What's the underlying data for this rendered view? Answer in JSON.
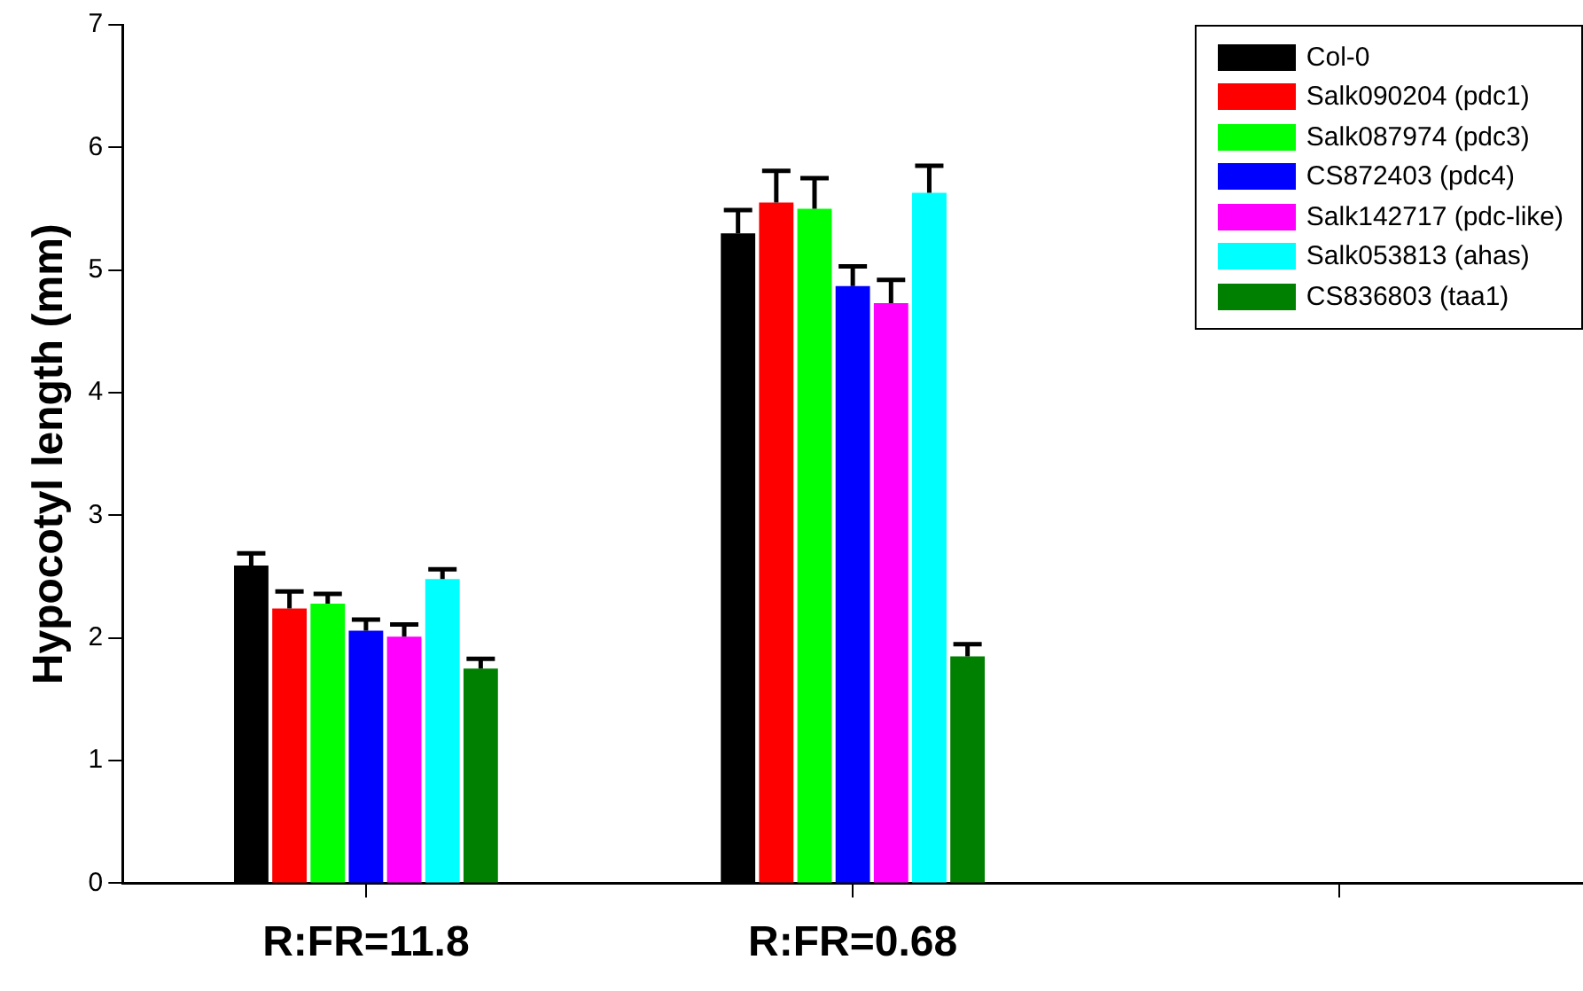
{
  "chart_data": {
    "type": "bar",
    "ylabel": "Hypocotyl length (mm)",
    "categories": [
      "R:FR=11.8",
      "R:FR=0.68",
      null
    ],
    "series": [
      {
        "name": "Col-0",
        "color": "#000000",
        "values": [
          2.59,
          5.3,
          null
        ],
        "errors": [
          [
            2.59,
            2.69
          ],
          [
            5.3,
            5.49
          ],
          null
        ]
      },
      {
        "name": "Salk090204 (pdc1)",
        "color": "#ff0000",
        "values": [
          2.24,
          5.55,
          null
        ],
        "errors": [
          [
            2.24,
            2.38
          ],
          [
            5.55,
            5.81
          ],
          null
        ]
      },
      {
        "name": "Salk087974 (pdc3)",
        "color": "#00ff00",
        "values": [
          2.28,
          5.5,
          null
        ],
        "errors": [
          [
            2.28,
            2.36
          ],
          [
            5.5,
            5.75
          ],
          null
        ]
      },
      {
        "name": "CS872403 (pdc4)",
        "color": "#0000ff",
        "values": [
          2.06,
          4.87,
          null
        ],
        "errors": [
          [
            2.06,
            2.15
          ],
          [
            4.87,
            5.03
          ],
          null
        ]
      },
      {
        "name": "Salk142717 (pdc-like)",
        "color": "#ff00ff",
        "values": [
          2.01,
          4.73,
          null
        ],
        "errors": [
          [
            2.01,
            2.11
          ],
          [
            4.73,
            4.92
          ],
          null
        ]
      },
      {
        "name": "Salk053813 (ahas)",
        "color": "#00ffff",
        "values": [
          2.48,
          5.63,
          null
        ],
        "errors": [
          [
            2.48,
            2.56
          ],
          [
            5.63,
            5.85
          ],
          null
        ]
      },
      {
        "name": "CS836803 (taa1)",
        "color": "#008000",
        "values": [
          1.75,
          1.85,
          null
        ],
        "errors": [
          [
            1.75,
            1.83
          ],
          [
            1.85,
            1.95
          ],
          null
        ]
      }
    ],
    "ylim": [
      0,
      7
    ],
    "yticks": [
      0,
      1,
      2,
      3,
      4,
      5,
      6,
      7
    ],
    "legend": "top right"
  }
}
